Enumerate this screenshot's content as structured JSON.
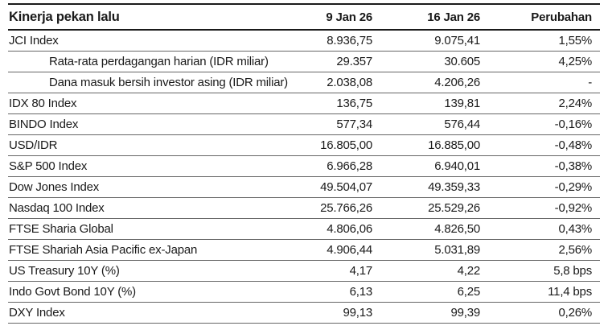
{
  "chart_data": {
    "type": "table",
    "title": "Kinerja pekan lalu",
    "columns": [
      "9 Jan 26",
      "16 Jan 26",
      "Perubahan"
    ],
    "rows": [
      {
        "label": "JCI Index",
        "indent": false,
        "values": [
          "8.936,75",
          "9.075,41",
          "1,55%"
        ]
      },
      {
        "label": "Rata-rata perdagangan harian (IDR miliar)",
        "indent": true,
        "values": [
          "29.357",
          "30.605",
          "4,25%"
        ]
      },
      {
        "label": "Dana masuk bersih investor asing (IDR miliar)",
        "indent": true,
        "values": [
          "2.038,08",
          "4.206,26",
          "-"
        ]
      },
      {
        "label": "IDX 80 Index",
        "indent": false,
        "values": [
          "136,75",
          "139,81",
          "2,24%"
        ]
      },
      {
        "label": "BINDO Index",
        "indent": false,
        "values": [
          "577,34",
          "576,44",
          "-0,16%"
        ]
      },
      {
        "label": "USD/IDR",
        "indent": false,
        "values": [
          "16.805,00",
          "16.885,00",
          "-0,48%"
        ]
      },
      {
        "label": "S&P 500 Index",
        "indent": false,
        "values": [
          "6.966,28",
          "6.940,01",
          "-0,38%"
        ]
      },
      {
        "label": "Dow Jones Index",
        "indent": false,
        "values": [
          "49.504,07",
          "49.359,33",
          "-0,29%"
        ]
      },
      {
        "label": "Nasdaq 100 Index",
        "indent": false,
        "values": [
          "25.766,26",
          "25.529,26",
          "-0,92%"
        ]
      },
      {
        "label": "FTSE Sharia Global",
        "indent": false,
        "values": [
          "4.806,06",
          "4.826,50",
          "0,43%"
        ]
      },
      {
        "label": "FTSE Shariah Asia Pacific ex-Japan",
        "indent": false,
        "values": [
          "4.906,44",
          "5.031,89",
          "2,56%"
        ]
      },
      {
        "label": "US Treasury 10Y (%)",
        "indent": false,
        "values": [
          "4,17",
          "4,22",
          "5,8 bps"
        ]
      },
      {
        "label": "Indo Govt Bond 10Y (%)",
        "indent": false,
        "values": [
          "6,13",
          "6,25",
          "11,4 bps"
        ]
      },
      {
        "label": "DXY Index",
        "indent": false,
        "values": [
          "99,13",
          "99,39",
          "0,26%"
        ]
      }
    ],
    "layout": {
      "background": "#ffffff",
      "text_color": "#1a1a1a",
      "strong_rule_color": "#1a1a1a",
      "row_rule_color": "#666666",
      "numeric_alignment": "right"
    }
  }
}
